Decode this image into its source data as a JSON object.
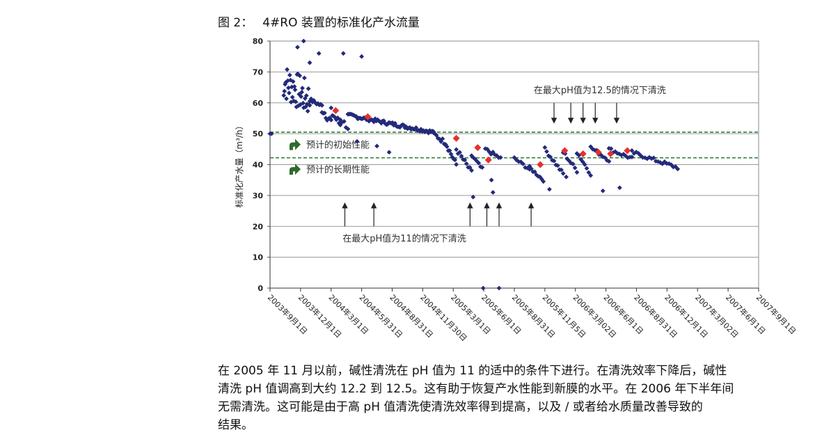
{
  "figure": {
    "label": "图 2：",
    "title": "4#RO 装置的标准化产水流量"
  },
  "chart_data": {
    "type": "scatter",
    "ylabel": "标准化产水量（m³/h）",
    "ylim": [
      0,
      80
    ],
    "yticks": [
      0,
      10,
      20,
      30,
      40,
      50,
      60,
      70,
      80
    ],
    "grid": true,
    "xtick_labels": [
      "2003年9月1日",
      "2003年12月1日",
      "2004年3月1日",
      "2004年5月31日",
      "2004年8月31日",
      "2004年11月30日",
      "2005年3月1日",
      "2005年6月1日",
      "2005年8月31日",
      "2005年11月5日",
      "2006年3月02日",
      "2006年6月1日",
      "2006年8月31日",
      "2006年12月1日",
      "2007年3月02日",
      "2007年6月1日",
      "2007年9月1日"
    ],
    "reference_lines": [
      {
        "name": "预计的初始性能",
        "value": 50.5,
        "color": "#2e7d32"
      },
      {
        "name": "预计的长期性能",
        "value": 42.2,
        "color": "#2e7d32"
      }
    ],
    "series": [
      {
        "color": "#232a7a",
        "segments": [
          {
            "x0": 0,
            "x1": 0.05,
            "y0": 50,
            "y1": 50
          },
          {
            "x0": 0.45,
            "x1": 1.3,
            "y0": 67,
            "y1": 61,
            "n": 40,
            "jitter": 6
          },
          {
            "x0": 1.3,
            "x1": 1.7,
            "y0": 61,
            "y1": 59,
            "n": 10,
            "jitter": 0.6
          },
          {
            "x0": 1.7,
            "x1": 2.0,
            "y0": 58,
            "y1": 54,
            "n": 8,
            "jitter": 1.5
          },
          {
            "x0": 2.0,
            "x1": 2.3,
            "y0": 57,
            "y1": 53,
            "n": 8,
            "jitter": 1.5
          },
          {
            "x0": 2.3,
            "x1": 2.55,
            "y0": 55,
            "y1": 52,
            "n": 5,
            "jitter": 1.0
          },
          {
            "x0": 2.55,
            "x1": 5.35,
            "y0": 56,
            "y1": 50.5,
            "n": 70,
            "jitter": 0.6
          },
          {
            "x0": 5.35,
            "x1": 5.75,
            "y0": 50,
            "y1": 47,
            "n": 9,
            "jitter": 0.8
          },
          {
            "x0": 5.75,
            "x1": 6.1,
            "y0": 47,
            "y1": 40,
            "n": 9,
            "jitter": 0.8
          },
          {
            "x0": 6.1,
            "x1": 6.6,
            "y0": 45,
            "y1": 37.5,
            "n": 10,
            "jitter": 0.8
          },
          {
            "x0": 6.6,
            "x1": 6.95,
            "y0": 43,
            "y1": 38.5,
            "n": 7,
            "jitter": 0.6
          },
          {
            "x0": 7.05,
            "x1": 7.55,
            "y0": 45,
            "y1": 42,
            "n": 9,
            "jitter": 0.6
          },
          {
            "x0": 8.0,
            "x1": 8.5,
            "y0": 42,
            "y1": 38.5,
            "n": 8,
            "jitter": 0.5
          },
          {
            "x0": 8.5,
            "x1": 8.95,
            "y0": 39,
            "y1": 35,
            "n": 9,
            "jitter": 0.5
          },
          {
            "x0": 9.0,
            "x1": 9.6,
            "y0": 45,
            "y1": 37,
            "n": 11,
            "jitter": 0.6
          },
          {
            "x0": 9.6,
            "x1": 10.05,
            "y0": 44,
            "y1": 38,
            "n": 8,
            "jitter": 0.6
          },
          {
            "x0": 10.05,
            "x1": 10.5,
            "y0": 44,
            "y1": 37,
            "n": 8,
            "jitter": 0.6
          },
          {
            "x0": 10.5,
            "x1": 11.1,
            "y0": 45.5,
            "y1": 41.5,
            "n": 10,
            "jitter": 0.6
          },
          {
            "x0": 11.1,
            "x1": 11.85,
            "y0": 45,
            "y1": 42,
            "n": 12,
            "jitter": 0.6
          },
          {
            "x0": 11.85,
            "x1": 13.35,
            "y0": 44,
            "y1": 39,
            "n": 22,
            "jitter": 0.6
          }
        ],
        "outliers": [
          [
            1.3,
            73
          ],
          [
            1.6,
            76
          ],
          [
            2.4,
            76
          ],
          [
            3.0,
            75
          ],
          [
            0.9,
            78
          ],
          [
            1.1,
            80
          ],
          [
            2.85,
            47.5
          ],
          [
            3.5,
            46
          ],
          [
            3.9,
            44
          ],
          [
            6.65,
            29.5
          ],
          [
            7.3,
            31
          ],
          [
            7.25,
            35
          ],
          [
            9.15,
            32
          ],
          [
            9.7,
            36
          ],
          [
            10.9,
            31.5
          ],
          [
            11.45,
            32.5
          ],
          [
            6.98,
            0
          ],
          [
            7.5,
            0
          ]
        ]
      },
      {
        "color": "#e53030",
        "points": [
          [
            2.15,
            57.5
          ],
          [
            3.2,
            55.5
          ],
          [
            6.1,
            48.5
          ],
          [
            6.8,
            45.5
          ],
          [
            7.15,
            41.5
          ],
          [
            8.85,
            40
          ],
          [
            9.65,
            44.5
          ],
          [
            10.25,
            43.5
          ],
          [
            10.75,
            44
          ],
          [
            11.15,
            43.5
          ],
          [
            11.7,
            44.5
          ]
        ]
      }
    ]
  },
  "annotations": {
    "low_ph_label": "在最大pH值为11的情况下清洗",
    "high_ph_label": "在最大pH值为12.5的情况下清洗",
    "low_ph_arrows_x": [
      2.45,
      3.4,
      6.55,
      7.1,
      7.5,
      8.55
    ],
    "high_ph_arrows_x": [
      9.3,
      9.85,
      10.25,
      10.65,
      11.35
    ]
  },
  "paragraph": [
    "在 2005 年 11 月以前，碱性清洗在 pH 值为 11 的适中的条件下进行。在清洗效率下降后，碱性",
    "清洗 pH 值调高到大约 12.2 到 12.5。这有助于恢复产水性能到新膜的水平。在 2006 年下半年间",
    "无需清洗。这可能是由于高 pH 值清洗使清洗效率得到提高，以及 / 或者给水质量改善导致的",
    "结果。"
  ]
}
